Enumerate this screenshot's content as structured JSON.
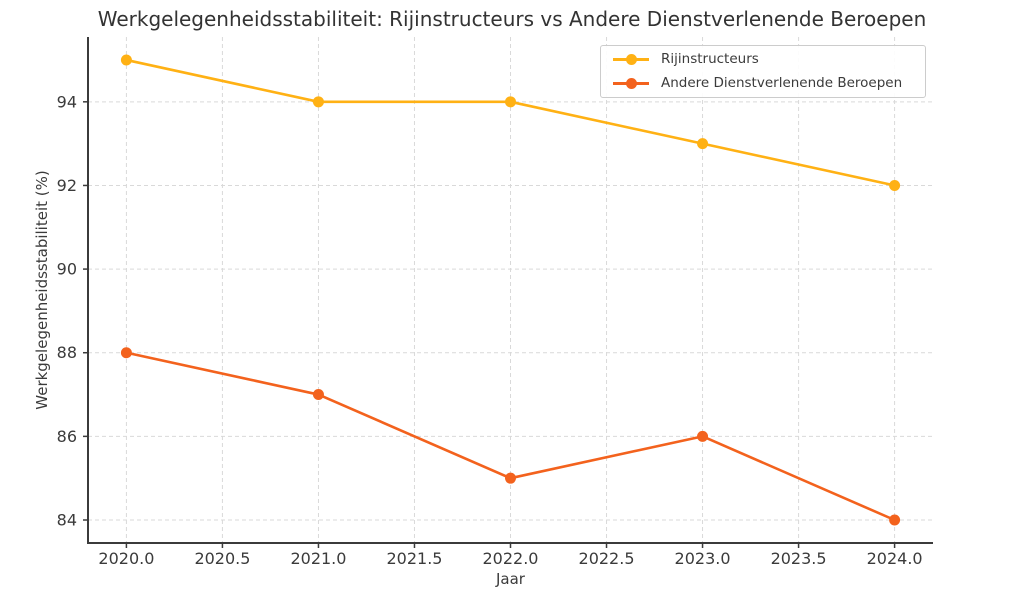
{
  "chart_data": {
    "type": "line",
    "title": "Werkgelegenheidsstabiliteit: Rijinstructeurs vs Andere Dienstverlenende Beroepen",
    "xlabel": "Jaar",
    "ylabel": "Werkgelegenheidsstabiliteit (%)",
    "x": [
      2020,
      2021,
      2022,
      2023,
      2024
    ],
    "series": [
      {
        "name": "Rijinstructeurs",
        "color": "#FFB114",
        "values": [
          95,
          94,
          94,
          93,
          92
        ]
      },
      {
        "name": "Andere Dienstverlenende Beroepen",
        "color": "#F3621D",
        "values": [
          88,
          87,
          85,
          86,
          84
        ]
      }
    ],
    "xlim": [
      2019.8,
      2024.2
    ],
    "ylim": [
      83.45,
      95.55
    ],
    "xticks": {
      "values": [
        2020.0,
        2020.5,
        2021.0,
        2021.5,
        2022.0,
        2022.5,
        2023.0,
        2023.5,
        2024.0
      ],
      "labels": [
        "2020.0",
        "2020.5",
        "2021.0",
        "2021.5",
        "2022.0",
        "2022.5",
        "2023.0",
        "2023.5",
        "2024.0"
      ]
    },
    "yticks": {
      "values": [
        84,
        86,
        88,
        90,
        92,
        94
      ],
      "labels": [
        "84",
        "86",
        "88",
        "90",
        "92",
        "94"
      ]
    },
    "grid": "dashed, both axes",
    "legend_position": "upper right",
    "marker": "circle"
  },
  "style": {
    "grid_color": "#d9d9d9",
    "axis_color": "#3b3b3b",
    "text_color": "#3a3a3a",
    "legend_border_color": "#cccccc",
    "background_color": "#ffffff"
  }
}
